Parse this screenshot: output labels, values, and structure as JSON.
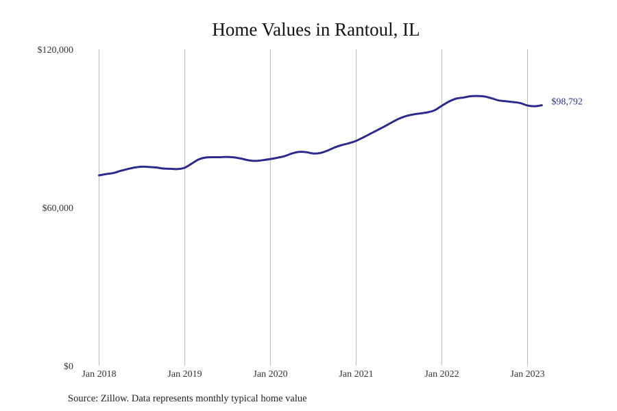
{
  "chart_data": {
    "type": "line",
    "title": "Home Values in Rantoul, IL",
    "xlabel": "",
    "ylabel": "",
    "ylim": [
      0,
      120000
    ],
    "y_ticks": [
      {
        "value": 0,
        "label": "$0"
      },
      {
        "value": 60000,
        "label": "$60,000"
      },
      {
        "value": 120000,
        "label": "$120,000"
      }
    ],
    "x_ticks": [
      {
        "month_index": 0,
        "label": "Jan 2018"
      },
      {
        "month_index": 12,
        "label": "Jan 2019"
      },
      {
        "month_index": 24,
        "label": "Jan 2020"
      },
      {
        "month_index": 36,
        "label": "Jan 2021"
      },
      {
        "month_index": 48,
        "label": "Jan 2022"
      },
      {
        "month_index": 60,
        "label": "Jan 2023"
      }
    ],
    "grid": {
      "vertical": true,
      "horizontal": false
    },
    "series": [
      {
        "color": "#2d2a8e",
        "x_start": "2018-01",
        "values": [
          72200,
          72700,
          73100,
          73900,
          74600,
          75200,
          75500,
          75400,
          75200,
          74800,
          74700,
          74600,
          75100,
          76700,
          78300,
          79000,
          79100,
          79100,
          79200,
          79000,
          78500,
          77900,
          77700,
          78000,
          78400,
          78900,
          79500,
          80500,
          81100,
          81000,
          80500,
          80700,
          81600,
          82800,
          83700,
          84400,
          85300,
          86600,
          88000,
          89400,
          90800,
          92300,
          93700,
          94700,
          95300,
          95700,
          96100,
          96900,
          98600,
          100200,
          101300,
          101700,
          102200,
          102300,
          102100,
          101400,
          100600,
          100300,
          100000,
          99600,
          98700,
          98400,
          98792
        ],
        "end_label": "$98,792"
      }
    ]
  },
  "footer": {
    "source": "Source: Zillow. Data represents monthly typical home value"
  }
}
